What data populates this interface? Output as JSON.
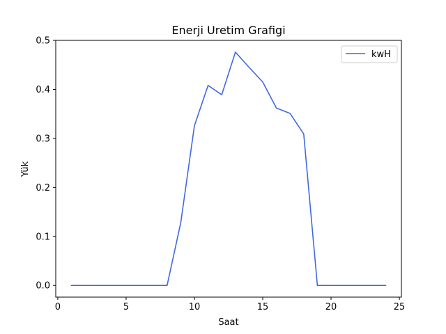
{
  "chart_data": {
    "type": "line",
    "title": "Enerji Uretim Grafigi",
    "xlabel": "Saat",
    "ylabel": "Yük",
    "xlim": [
      -0.15,
      25.15
    ],
    "ylim": [
      -0.0238,
      0.5
    ],
    "xticks": [
      0,
      5,
      10,
      15,
      20,
      25
    ],
    "xtick_labels": [
      "0",
      "5",
      "10",
      "15",
      "20",
      "25"
    ],
    "yticks": [
      0.0,
      0.1,
      0.2,
      0.3,
      0.4,
      0.5
    ],
    "ytick_labels": [
      "0.0",
      "0.1",
      "0.2",
      "0.3",
      "0.4",
      "0.5"
    ],
    "grid": false,
    "legend_position": "top-right",
    "series": [
      {
        "name": "kwH",
        "color": "#4169e1",
        "x": [
          1,
          2,
          3,
          4,
          5,
          6,
          7,
          8,
          9,
          10,
          11,
          12,
          13,
          14,
          15,
          16,
          17,
          18,
          19,
          20,
          21,
          22,
          23,
          24
        ],
        "y": [
          0,
          0,
          0,
          0,
          0,
          0,
          0,
          0,
          0.128,
          0.326,
          0.408,
          0.389,
          0.476,
          0.445,
          0.415,
          0.362,
          0.351,
          0.309,
          0,
          0,
          0,
          0,
          0,
          0
        ]
      }
    ]
  }
}
